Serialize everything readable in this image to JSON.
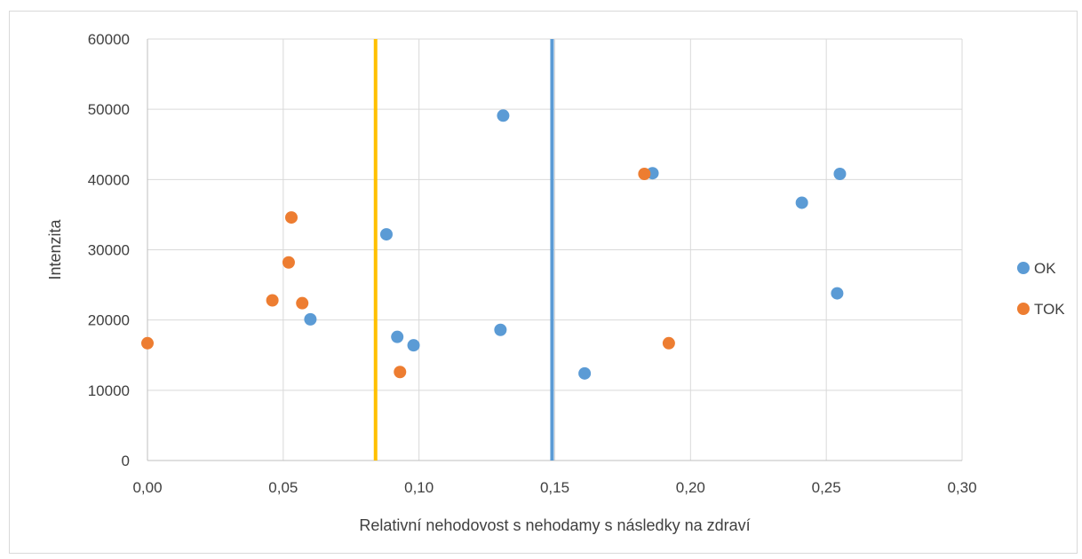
{
  "chart_data": {
    "type": "scatter",
    "title": "",
    "xlabel": "Relativní nehodovost s nehodamy s následky na zdraví",
    "ylabel": "Intenzita",
    "xlim": [
      0,
      0.3
    ],
    "ylim": [
      0,
      60000
    ],
    "x_ticks": [
      "0,00",
      "0,05",
      "0,10",
      "0,15",
      "0,20",
      "0,25",
      "0,30"
    ],
    "x_tick_values": [
      0,
      0.05,
      0.1,
      0.15,
      0.2,
      0.25,
      0.3
    ],
    "y_ticks": [
      "0",
      "10000",
      "20000",
      "30000",
      "40000",
      "50000",
      "60000"
    ],
    "y_tick_values": [
      0,
      10000,
      20000,
      30000,
      40000,
      50000,
      60000
    ],
    "grid": true,
    "legend_position": "right",
    "series": [
      {
        "name": "OK",
        "color": "#5b9bd5",
        "points": [
          {
            "x": 0.06,
            "y": 20100
          },
          {
            "x": 0.088,
            "y": 32200
          },
          {
            "x": 0.092,
            "y": 17600
          },
          {
            "x": 0.098,
            "y": 16400
          },
          {
            "x": 0.13,
            "y": 18600
          },
          {
            "x": 0.131,
            "y": 49100
          },
          {
            "x": 0.161,
            "y": 12400
          },
          {
            "x": 0.186,
            "y": 40900
          },
          {
            "x": 0.241,
            "y": 36700
          },
          {
            "x": 0.254,
            "y": 23800
          },
          {
            "x": 0.255,
            "y": 40800
          }
        ]
      },
      {
        "name": "TOK",
        "color": "#ed7d31",
        "points": [
          {
            "x": 0.0,
            "y": 16700
          },
          {
            "x": 0.046,
            "y": 22800
          },
          {
            "x": 0.052,
            "y": 28200
          },
          {
            "x": 0.053,
            "y": 34600
          },
          {
            "x": 0.057,
            "y": 22400
          },
          {
            "x": 0.093,
            "y": 12600
          },
          {
            "x": 0.183,
            "y": 40800
          },
          {
            "x": 0.192,
            "y": 16700
          }
        ]
      }
    ],
    "vertical_lines": [
      {
        "x": 0.084,
        "color": "#ffc000"
      },
      {
        "x": 0.149,
        "color": "#5b9bd5"
      }
    ]
  }
}
